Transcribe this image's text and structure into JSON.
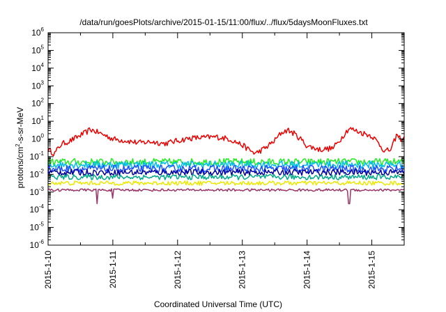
{
  "chart_data": {
    "type": "line",
    "title": "/data/run/goesPlots/archive/2015-01-15/11:00/flux/../flux/5daysMoonFluxes.txt",
    "xlabel": "Coordinated Universal Time (UTC)",
    "ylabel": {
      "pre": "protons/cm",
      "sup": "2",
      "post": "-s-sr-MeV"
    },
    "yscale": "log",
    "ylim_exp": [
      -6,
      6
    ],
    "xlim_days": [
      0,
      5.5
    ],
    "xticks": [
      {
        "day": 0,
        "label": "2015-1-10"
      },
      {
        "day": 1,
        "label": "2015-1-11"
      },
      {
        "day": 2,
        "label": "2015-1-12"
      },
      {
        "day": 3,
        "label": "2015-1-13"
      },
      {
        "day": 4,
        "label": "2015-1-14"
      },
      {
        "day": 5,
        "label": "2015-1-15"
      }
    ],
    "yticks": [
      {
        "exp": 6,
        "base": "10",
        "sup": "6"
      },
      {
        "exp": 5,
        "base": "10",
        "sup": "5"
      },
      {
        "exp": 4,
        "base": "10",
        "sup": "4"
      },
      {
        "exp": 3,
        "base": "10",
        "sup": "3"
      },
      {
        "exp": 2,
        "base": "10",
        "sup": "2"
      },
      {
        "exp": 1,
        "base": "10",
        "sup": "1"
      },
      {
        "exp": 0,
        "base": "10",
        "sup": "0"
      },
      {
        "exp": -1,
        "base": "10",
        "sup": "-1"
      },
      {
        "exp": -2,
        "base": "10",
        "sup": "-2"
      },
      {
        "exp": -3,
        "base": "10",
        "sup": "-3"
      },
      {
        "exp": -4,
        "base": "10",
        "sup": "-4"
      },
      {
        "exp": -5,
        "base": "10",
        "sup": "-5"
      },
      {
        "exp": -6,
        "base": "10",
        "sup": "-6"
      }
    ],
    "grid": false,
    "legend": "none",
    "series": [
      {
        "color": "#ee0000",
        "noise": 0.16,
        "points": [
          [
            0,
            0.25
          ],
          [
            0.1,
            0.15
          ],
          [
            0.2,
            0.5
          ],
          [
            0.35,
            0.8
          ],
          [
            0.5,
            1.6
          ],
          [
            0.6,
            2.5
          ],
          [
            0.65,
            3.5
          ],
          [
            0.75,
            2.5
          ],
          [
            0.9,
            1.5
          ],
          [
            1.0,
            1.0
          ],
          [
            1.2,
            0.8
          ],
          [
            1.4,
            0.6
          ],
          [
            1.6,
            0.7
          ],
          [
            1.8,
            0.55
          ],
          [
            2.0,
            0.8
          ],
          [
            2.2,
            1.1
          ],
          [
            2.4,
            1.2
          ],
          [
            2.6,
            1.3
          ],
          [
            2.8,
            1.0
          ],
          [
            3.0,
            0.45
          ],
          [
            3.1,
            0.25
          ],
          [
            3.2,
            0.15
          ],
          [
            3.35,
            0.3
          ],
          [
            3.5,
            0.8
          ],
          [
            3.6,
            2.2
          ],
          [
            3.7,
            3.2
          ],
          [
            3.8,
            2.0
          ],
          [
            3.9,
            1.0
          ],
          [
            4.0,
            0.4
          ],
          [
            4.2,
            0.25
          ],
          [
            4.4,
            0.3
          ],
          [
            4.5,
            0.8
          ],
          [
            4.6,
            2.5
          ],
          [
            4.65,
            4.0
          ],
          [
            4.8,
            2.5
          ],
          [
            5.0,
            1.5
          ],
          [
            5.1,
            0.6
          ],
          [
            5.2,
            0.2
          ],
          [
            5.3,
            0.25
          ],
          [
            5.38,
            1.6
          ],
          [
            5.45,
            1.0
          ],
          [
            5.5,
            1.1
          ]
        ]
      },
      {
        "color": "#22ee22",
        "noise": 0.2,
        "points": [
          [
            0,
            0.05
          ],
          [
            5.5,
            0.05
          ]
        ]
      },
      {
        "color": "#00bbee",
        "noise": 0.22,
        "points": [
          [
            0,
            0.035
          ],
          [
            5.5,
            0.035
          ]
        ]
      },
      {
        "color": "#1d4fff",
        "noise": 0.22,
        "points": [
          [
            0,
            0.02
          ],
          [
            5.5,
            0.02
          ]
        ]
      },
      {
        "color": "#00009a",
        "noise": 0.18,
        "points": [
          [
            0,
            0.013
          ],
          [
            5.5,
            0.013
          ]
        ]
      },
      {
        "color": "#00aa88",
        "noise": 0.15,
        "points": [
          [
            0,
            0.007
          ],
          [
            5.5,
            0.007
          ]
        ]
      },
      {
        "color": "#e8e800",
        "noise": 0.12,
        "points": [
          [
            0,
            0.0032
          ],
          [
            5.5,
            0.0032
          ]
        ]
      },
      {
        "color": "#993366",
        "noise": 0.07,
        "points": [
          [
            0,
            0.0013
          ],
          [
            5.5,
            0.0013
          ]
        ],
        "dips": [
          {
            "day": 0.75,
            "value": 0.00022
          },
          {
            "day": 1.0,
            "value": 0.00045
          },
          {
            "day": 4.65,
            "value": 0.00022
          }
        ]
      }
    ]
  }
}
